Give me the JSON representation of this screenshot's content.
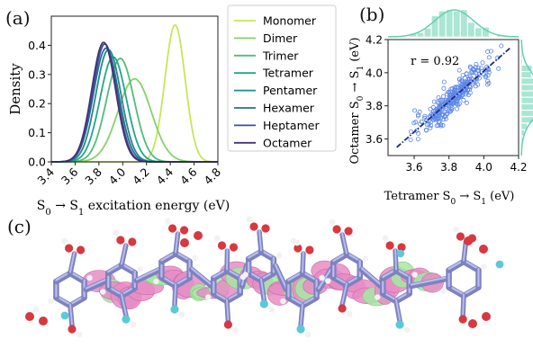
{
  "figure": {
    "panels": [
      {
        "letter": "(a)"
      },
      {
        "letter": "(b)"
      },
      {
        "letter": "(c)"
      }
    ]
  },
  "chart_data": [
    {
      "type": "line",
      "panel": "(a)",
      "xlabel_parts": [
        "S",
        "0",
        " → S",
        "1",
        " excitation energy (eV)"
      ],
      "ylabel": "Density",
      "xlim": [
        3.4,
        4.8
      ],
      "ylim": [
        0.0,
        0.5
      ],
      "xticks": [
        "3.4",
        "3.6",
        "3.8",
        "4.0",
        "4.2",
        "4.4",
        "4.6",
        "4.8"
      ],
      "yticks": [
        "0.0",
        "0.1",
        "0.2",
        "0.3",
        "0.4"
      ],
      "legend_position": "right",
      "series": [
        {
          "name": "Monomer",
          "color": "#c7e55a",
          "mean": 4.44,
          "sd": 0.085,
          "peak": 0.47
        },
        {
          "name": "Dimer",
          "color": "#86d26b",
          "mean": 4.1,
          "sd": 0.14,
          "peak": 0.285
        },
        {
          "name": "Trimer",
          "color": "#4fbf76",
          "mean": 3.98,
          "sd": 0.115,
          "peak": 0.355
        },
        {
          "name": "Tetramer",
          "color": "#25a682",
          "mean": 3.92,
          "sd": 0.11,
          "peak": 0.36
        },
        {
          "name": "Pentamer",
          "color": "#1f8b8c",
          "mean": 3.88,
          "sd": 0.105,
          "peak": 0.385
        },
        {
          "name": "Hexamer",
          "color": "#2a6f93",
          "mean": 3.86,
          "sd": 0.105,
          "peak": 0.39
        },
        {
          "name": "Heptamer",
          "color": "#37538f",
          "mean": 3.85,
          "sd": 0.1,
          "peak": 0.405
        },
        {
          "name": "Octamer",
          "color": "#46317a",
          "mean": 3.84,
          "sd": 0.1,
          "peak": 0.41
        }
      ]
    },
    {
      "type": "scatter",
      "panel": "(b)",
      "xlabel_parts": [
        "Tetramer S",
        "0",
        " → S",
        "1",
        " (eV)"
      ],
      "ylabel_parts": [
        "Octamer S",
        "0",
        " → S",
        "1",
        " (eV)"
      ],
      "xlim": [
        3.45,
        4.2
      ],
      "ylim": [
        3.5,
        4.2
      ],
      "xticks": [
        "3.6",
        "3.8",
        "4.0",
        "4.2"
      ],
      "yticks": [
        "3.6",
        "3.8",
        "4.0",
        "4.2"
      ],
      "annotation": "r = 0.92",
      "point_color": "#5b86e5",
      "fit_color": "#1b2a8a",
      "marginal_color": "#63d1ae",
      "fit": {
        "slope": 0.92,
        "intercept": 0.33
      },
      "n_points": 300,
      "x_mean": 3.83,
      "x_sd": 0.11,
      "y_mean": 3.855,
      "y_sd": 0.11
    }
  ]
}
